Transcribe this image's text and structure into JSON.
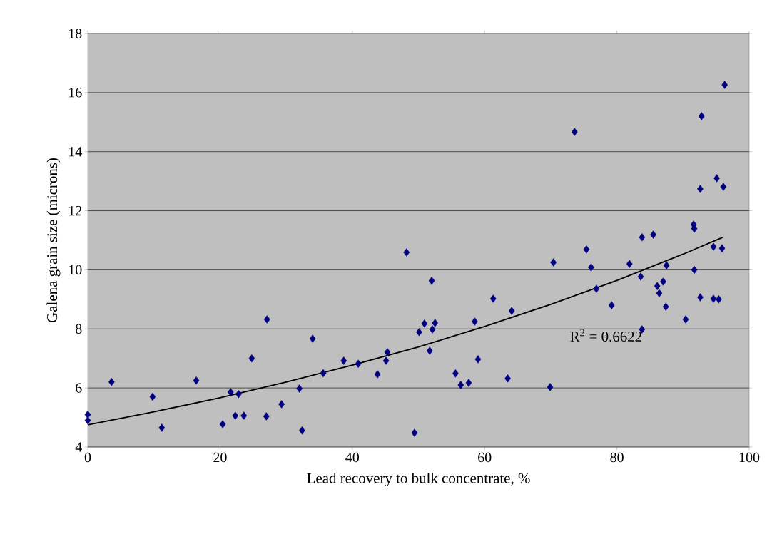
{
  "chart_data": {
    "type": "scatter",
    "xlabel": "Lead recovery to bulk concentrate, %",
    "ylabel": "Galena grain size (microns)",
    "xlim": [
      0,
      100
    ],
    "xticks": [
      0,
      20,
      40,
      60,
      80,
      100
    ],
    "ylim": [
      4,
      18
    ],
    "yticks": [
      4,
      6,
      8,
      10,
      12,
      14,
      16,
      18
    ],
    "grid": "y",
    "annotations": [
      "R$^{2}$ = 0.6622"
    ],
    "series": [
      {
        "color": "#000080",
        "marker": "diamond",
        "x": [
          0,
          0,
          3.6,
          9.8,
          11.2,
          16.4,
          20.4,
          21.6,
          22.3,
          22.8,
          23.6,
          24.8,
          27.0,
          27.1,
          29.3,
          32.0,
          32.4,
          34.0,
          35.6,
          38.7,
          40.9,
          43.8,
          45.1,
          45.3,
          48.2,
          49.4,
          50.1,
          50.9,
          51.7,
          52.0,
          52.1,
          52.5,
          55.6,
          56.4,
          57.6,
          58.5,
          59.0,
          61.3,
          63.5,
          64.1,
          69.9,
          70.4,
          73.6,
          75.4,
          76.1,
          76.9,
          79.2,
          81.9,
          83.6,
          83.8,
          83.8,
          85.5,
          86.1,
          86.4,
          87.0,
          87.5,
          87.4,
          90.4,
          91.6,
          91.7,
          91.7,
          92.6,
          92.6,
          92.8,
          94.6,
          94.6,
          95.1,
          95.4,
          95.9,
          96.1,
          96.3
        ],
        "values": [
          5.1,
          4.9,
          6.2,
          5.7,
          4.65,
          6.25,
          4.77,
          5.86,
          5.06,
          5.79,
          5.06,
          7.0,
          5.04,
          8.32,
          5.45,
          5.98,
          4.56,
          7.67,
          6.5,
          6.92,
          6.82,
          6.46,
          6.92,
          7.21,
          10.59,
          4.48,
          7.89,
          8.18,
          7.26,
          9.63,
          7.98,
          8.2,
          6.49,
          6.1,
          6.17,
          8.25,
          6.97,
          9.02,
          6.32,
          8.61,
          6.03,
          10.25,
          14.67,
          10.69,
          10.08,
          9.36,
          8.8,
          10.2,
          9.77,
          11.1,
          7.98,
          11.19,
          9.45,
          9.21,
          9.6,
          10.15,
          8.75,
          8.32,
          11.53,
          11.39,
          10.0,
          9.07,
          12.74,
          15.2,
          10.78,
          9.02,
          13.1,
          9.0,
          10.73,
          12.81,
          16.26
        ]
      },
      {
        "type": "line",
        "marker": "none",
        "color": "#000000",
        "x": [
          0,
          10,
          20,
          30,
          40,
          50,
          60,
          70,
          80,
          90,
          96
        ],
        "values": [
          4.75,
          5.19,
          5.67,
          6.2,
          6.77,
          7.39,
          8.08,
          8.83,
          9.64,
          10.53,
          11.1
        ]
      }
    ]
  }
}
